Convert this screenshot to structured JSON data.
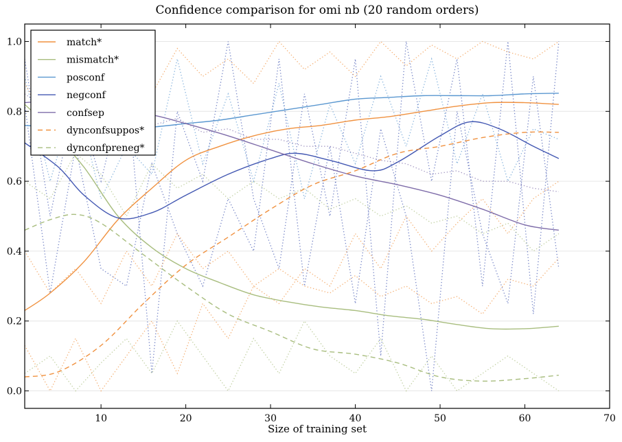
{
  "chart_data": {
    "type": "line",
    "title": "Confidence comparison for omi nb (20 random orders)",
    "xlabel": "Size of training set",
    "ylabel": "",
    "xlim": [
      1,
      70
    ],
    "ylim": [
      -0.05,
      1.05
    ],
    "xticks": [
      10,
      20,
      30,
      40,
      50,
      60,
      70
    ],
    "yticks": [
      "0.0",
      "0.2",
      "0.4",
      "0.6",
      "0.8",
      "1.0"
    ],
    "grid": "horizontal",
    "legend_placement": "top-left",
    "series": [
      {
        "name": "match*",
        "color": "#f0913f",
        "style": "solid",
        "x": [
          1,
          4,
          8,
          12,
          16,
          20,
          24,
          28,
          32,
          36,
          40,
          44,
          48,
          52,
          56,
          60,
          64
        ],
        "y": [
          0.23,
          0.28,
          0.37,
          0.49,
          0.58,
          0.66,
          0.7,
          0.73,
          0.75,
          0.76,
          0.775,
          0.785,
          0.8,
          0.815,
          0.825,
          0.825,
          0.82
        ]
      },
      {
        "name": "mismatch*",
        "color": "#a8bd7e",
        "style": "solid",
        "x": [
          1,
          4,
          8,
          12,
          16,
          20,
          24,
          28,
          32,
          36,
          40,
          44,
          48,
          52,
          56,
          60,
          64
        ],
        "y": [
          0.82,
          0.75,
          0.64,
          0.5,
          0.41,
          0.35,
          0.31,
          0.275,
          0.255,
          0.24,
          0.23,
          0.215,
          0.205,
          0.19,
          0.178,
          0.178,
          0.185
        ]
      },
      {
        "name": "posconf",
        "color": "#5a97d0",
        "style": "solid",
        "x": [
          1,
          4,
          8,
          12,
          16,
          20,
          24,
          28,
          32,
          36,
          40,
          44,
          48,
          52,
          56,
          60,
          64
        ],
        "y": [
          0.76,
          0.755,
          0.75,
          0.75,
          0.755,
          0.765,
          0.775,
          0.79,
          0.805,
          0.82,
          0.835,
          0.84,
          0.845,
          0.845,
          0.845,
          0.85,
          0.852
        ]
      },
      {
        "name": "negconf",
        "color": "#4257b2",
        "style": "solid",
        "x": [
          1,
          5,
          8,
          12,
          16,
          20,
          25,
          30,
          33,
          37,
          42,
          45,
          50,
          53.5,
          57,
          61,
          64
        ],
        "y": [
          0.71,
          0.64,
          0.56,
          0.495,
          0.51,
          0.56,
          0.62,
          0.665,
          0.68,
          0.66,
          0.63,
          0.655,
          0.73,
          0.77,
          0.75,
          0.7,
          0.665
        ]
      },
      {
        "name": "confsep",
        "color": "#7e6ca9",
        "style": "solid",
        "x": [
          1,
          5,
          10,
          16,
          20,
          25,
          30,
          35,
          40,
          45,
          50,
          55,
          60,
          64
        ],
        "y": [
          0.825,
          0.83,
          0.815,
          0.79,
          0.765,
          0.73,
          0.69,
          0.65,
          0.615,
          0.59,
          0.56,
          0.52,
          0.475,
          0.46
        ]
      },
      {
        "name": "dynconfsuppos*",
        "color": "#f0913f",
        "style": "dashed",
        "x": [
          1,
          5,
          10,
          15,
          20,
          25,
          30,
          35,
          40,
          45,
          50,
          55,
          60,
          64
        ],
        "y": [
          0.04,
          0.055,
          0.13,
          0.25,
          0.36,
          0.44,
          0.52,
          0.59,
          0.63,
          0.68,
          0.7,
          0.725,
          0.74,
          0.74
        ]
      },
      {
        "name": "dynconfpreneg*",
        "color": "#a8bd7e",
        "style": "dashed",
        "x": [
          1,
          4,
          7,
          10,
          15,
          20,
          25,
          30,
          35,
          40,
          45,
          50,
          55,
          60,
          64
        ],
        "y": [
          0.46,
          0.49,
          0.505,
          0.48,
          0.39,
          0.3,
          0.22,
          0.17,
          0.12,
          0.105,
          0.08,
          0.04,
          0.028,
          0.035,
          0.045
        ]
      }
    ],
    "dotted_series": [
      {
        "color": "#4257b2",
        "x": [
          1,
          4,
          7,
          10,
          13,
          16,
          19,
          22,
          25,
          28,
          31,
          34,
          37,
          40,
          43,
          46,
          49,
          52,
          55,
          58,
          61,
          64
        ],
        "y": [
          0.82,
          0.28,
          0.7,
          0.35,
          0.3,
          0.65,
          0.45,
          0.3,
          0.55,
          0.4,
          0.95,
          0.3,
          0.7,
          0.25,
          0.75,
          0.5,
          0.0,
          0.8,
          0.45,
          0.25,
          0.9,
          0.35
        ]
      },
      {
        "color": "#4257b2",
        "x": [
          1,
          4,
          7,
          10,
          13,
          16,
          19,
          22,
          25,
          28,
          31,
          34,
          37,
          40,
          43,
          46,
          49,
          52,
          55,
          58,
          61,
          64
        ],
        "y": [
          0.95,
          0.5,
          0.85,
          0.6,
          0.9,
          0.05,
          0.8,
          0.6,
          1.0,
          0.55,
          0.35,
          0.85,
          0.5,
          0.95,
          0.1,
          1.0,
          0.6,
          0.95,
          0.3,
          1.0,
          0.22,
          1.0
        ]
      },
      {
        "color": "#5a97d0",
        "x": [
          1,
          4,
          7,
          10,
          13,
          16,
          19,
          22,
          25,
          28,
          31,
          34,
          37,
          40,
          43,
          46,
          49,
          52,
          55,
          58,
          61,
          64
        ],
        "y": [
          0.9,
          0.6,
          0.85,
          0.55,
          0.7,
          0.62,
          0.95,
          0.65,
          0.85,
          0.6,
          0.88,
          0.55,
          0.82,
          0.65,
          0.9,
          0.7,
          0.95,
          0.65,
          0.85,
          0.6,
          0.75,
          0.72
        ]
      },
      {
        "color": "#f0913f",
        "x": [
          1,
          4,
          7,
          10,
          13,
          16,
          19,
          22,
          25,
          28,
          31,
          34,
          37,
          40,
          43,
          46,
          49,
          52,
          55,
          58,
          61,
          64
        ],
        "y": [
          0.88,
          0.75,
          0.9,
          0.82,
          0.95,
          0.85,
          0.98,
          0.9,
          0.95,
          0.88,
          1.0,
          0.92,
          0.97,
          0.9,
          1.0,
          0.93,
          0.99,
          0.95,
          1.0,
          0.97,
          0.95,
          1.0
        ]
      },
      {
        "color": "#f0913f",
        "x": [
          1,
          4,
          7,
          10,
          13,
          16,
          19,
          22,
          25,
          28,
          31,
          34,
          37,
          40,
          43,
          46,
          49,
          52,
          55,
          58,
          61,
          64
        ],
        "y": [
          0.13,
          0.0,
          0.15,
          0.0,
          0.1,
          0.2,
          0.05,
          0.25,
          0.15,
          0.3,
          0.25,
          0.35,
          0.3,
          0.45,
          0.35,
          0.5,
          0.4,
          0.48,
          0.55,
          0.45,
          0.55,
          0.6
        ]
      },
      {
        "color": "#f0913f",
        "x": [
          1,
          4,
          7,
          10,
          13,
          16,
          19,
          22,
          25,
          28,
          31,
          34,
          37,
          40,
          43,
          46,
          49,
          52,
          55,
          58,
          61,
          64
        ],
        "y": [
          0.4,
          0.28,
          0.35,
          0.25,
          0.4,
          0.3,
          0.45,
          0.35,
          0.4,
          0.3,
          0.35,
          0.3,
          0.28,
          0.33,
          0.27,
          0.3,
          0.25,
          0.27,
          0.22,
          0.32,
          0.3,
          0.38
        ]
      },
      {
        "color": "#a8bd7e",
        "x": [
          1,
          4,
          7,
          10,
          13,
          16,
          19,
          22,
          25,
          28,
          31,
          34,
          37,
          40,
          43,
          46,
          49,
          52,
          55,
          58,
          61,
          64
        ],
        "y": [
          0.05,
          0.1,
          0.0,
          0.08,
          0.15,
          0.05,
          0.2,
          0.1,
          0.0,
          0.15,
          0.05,
          0.2,
          0.1,
          0.05,
          0.15,
          0.0,
          0.1,
          0.0,
          0.05,
          0.1,
          0.05,
          0.0
        ]
      },
      {
        "color": "#a8bd7e",
        "x": [
          1,
          4,
          7,
          10,
          13,
          16,
          19,
          22,
          25,
          28,
          31,
          34,
          37,
          40,
          43,
          46,
          49,
          52,
          55,
          58,
          61,
          64
        ],
        "y": [
          0.6,
          0.55,
          0.68,
          0.62,
          0.5,
          0.65,
          0.58,
          0.62,
          0.55,
          0.6,
          0.55,
          0.58,
          0.52,
          0.55,
          0.5,
          0.53,
          0.48,
          0.5,
          0.45,
          0.48,
          0.4,
          0.45
        ]
      },
      {
        "color": "#7e6ca9",
        "x": [
          1,
          4,
          7,
          10,
          13,
          16,
          19,
          22,
          25,
          28,
          31,
          34,
          37,
          40,
          43,
          46,
          49,
          52,
          55,
          58,
          61,
          64
        ],
        "y": [
          0.85,
          0.8,
          0.82,
          0.78,
          0.8,
          0.76,
          0.78,
          0.74,
          0.75,
          0.72,
          0.72,
          0.7,
          0.7,
          0.68,
          0.66,
          0.65,
          0.62,
          0.63,
          0.6,
          0.6,
          0.58,
          0.57
        ]
      }
    ]
  }
}
